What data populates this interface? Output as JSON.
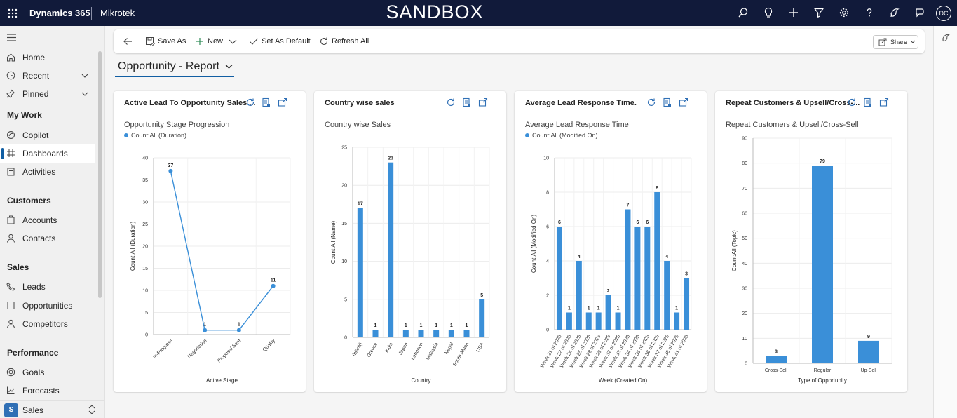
{
  "app": {
    "name": "Dynamics 365",
    "org": "Mikrotek",
    "environment": "SANDBOX",
    "user_initials": "DC"
  },
  "sidebar": {
    "top": [
      {
        "label": "Home"
      },
      {
        "label": "Recent"
      },
      {
        "label": "Pinned"
      }
    ],
    "my_work": {
      "heading": "My Work",
      "items": [
        {
          "label": "Copilot"
        },
        {
          "label": "Dashboards"
        },
        {
          "label": "Activities"
        }
      ]
    },
    "customers": {
      "heading": "Customers",
      "items": [
        {
          "label": "Accounts"
        },
        {
          "label": "Contacts"
        }
      ]
    },
    "sales": {
      "heading": "Sales",
      "items": [
        {
          "label": "Leads"
        },
        {
          "label": "Opportunities"
        },
        {
          "label": "Competitors"
        }
      ]
    },
    "performance": {
      "heading": "Performance",
      "items": [
        {
          "label": "Goals"
        },
        {
          "label": "Forecasts"
        }
      ]
    },
    "area": {
      "badge": "S",
      "label": "Sales"
    }
  },
  "toolbar": {
    "save_as": "Save As",
    "new": "New",
    "set_default": "Set As Default",
    "refresh_all": "Refresh All",
    "share": "Share"
  },
  "dashboard": {
    "title": "Opportunity - Report"
  },
  "colors": {
    "series": "#3a8fd8",
    "nav": "#111a3a",
    "accent": "#115ea3"
  },
  "chart_data": [
    {
      "type": "line",
      "card_title": "Active Lead To Opportunity Sales ...",
      "title": "Opportunity Stage Progression",
      "legend": "Count:All (Duration)",
      "categories": [
        "In-Progress",
        "Negotiation",
        "Proposal Sent",
        "Qualify"
      ],
      "values": [
        37,
        1,
        1,
        11
      ],
      "data_labels": [
        "37",
        "1",
        "1",
        "11"
      ],
      "xlabel": "Active Stage",
      "ylabel": "Count:All (Duration)",
      "ylim": [
        0,
        40
      ],
      "yticks": [
        0,
        5,
        10,
        15,
        20,
        25,
        30,
        35,
        40
      ]
    },
    {
      "type": "bar",
      "card_title": "Country wise sales",
      "title": "Country wise Sales",
      "categories": [
        "(blank)",
        "Greece",
        "India",
        "Japan",
        "Lebanon",
        "Malaysia",
        "Nepal",
        "South Africa",
        "USA"
      ],
      "values": [
        17,
        1,
        23,
        1,
        1,
        1,
        1,
        1,
        5
      ],
      "data_labels": [
        "17",
        "1",
        "23",
        "1",
        "1",
        "1",
        "1",
        "1",
        "5"
      ],
      "xlabel": "Country",
      "ylabel": "Count:All (Name)",
      "ylim": [
        0,
        25
      ],
      "yticks": [
        0,
        5,
        10,
        15,
        20,
        25
      ]
    },
    {
      "type": "bar",
      "card_title": "Average Lead Response Time.",
      "title": "Average Lead Response Time",
      "legend": "Count:All (Modified On)",
      "categories": [
        "Week 21 of 2025",
        "Week 22 of 2025",
        "Week 24 of 2025",
        "Week 25 of 2025",
        "Week 28 of 2025",
        "Week 29 of 2025",
        "Week 32 of 2025",
        "Week 33 of 2025",
        "Week 34 of 2025",
        "Week 35 of 2025",
        "Week 36 of 2025",
        "Week 37 of 2025",
        "Week 38 of 2025",
        "Week 41 of 2025"
      ],
      "values": [
        6,
        1,
        4,
        1,
        1,
        2,
        1,
        7,
        6,
        6,
        8,
        4,
        1,
        3
      ],
      "data_labels": [
        "6",
        "1",
        "4",
        "1",
        "1",
        "2",
        "1",
        "7",
        "6",
        "6",
        "8",
        "4",
        "1",
        "3"
      ],
      "xlabel": "Week (Created On)",
      "ylabel": "Count:All (Modified On)",
      "ylim": [
        0,
        10
      ],
      "yticks": [
        0,
        2,
        4,
        6,
        8,
        10
      ]
    },
    {
      "type": "bar",
      "card_title": "Repeat Customers & Upsell/Cross-...",
      "title": "Repeat Customers & Upsell/Cross-Sell",
      "categories": [
        "Cross-Sell",
        "Regular",
        "Up-Sell"
      ],
      "values": [
        3,
        79,
        9
      ],
      "data_labels": [
        "3",
        "79",
        "9"
      ],
      "xlabel": "Type of Opportunity",
      "ylabel": "Count:All (Topic)",
      "ylim": [
        0,
        90
      ],
      "yticks": [
        0,
        10,
        20,
        30,
        40,
        50,
        60,
        70,
        80,
        90
      ]
    }
  ]
}
